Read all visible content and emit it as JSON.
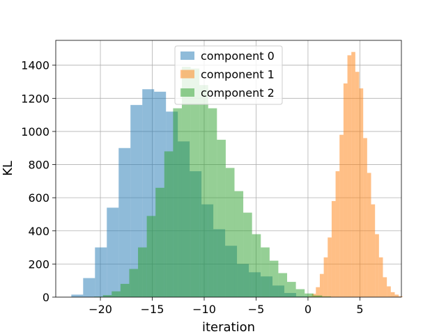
{
  "chart_data": {
    "type": "histogram",
    "xlabel": "iteration",
    "ylabel": "KL",
    "xlim": [
      -24.3,
      9.0
    ],
    "ylim": [
      0,
      1550
    ],
    "xticks": [
      -20,
      -15,
      -10,
      -5,
      0,
      5
    ],
    "xtick_labels": [
      "−20",
      "−15",
      "−10",
      "−5",
      "0",
      "5"
    ],
    "yticks": [
      0,
      200,
      400,
      600,
      800,
      1000,
      1200,
      1400
    ],
    "ytick_labels": [
      "0",
      "200",
      "400",
      "600",
      "800",
      "1000",
      "1200",
      "1400"
    ],
    "grid": true,
    "legend_position": "top-center",
    "series": [
      {
        "name": "component 0",
        "color": "#1f77b4",
        "alpha": 0.5,
        "bin_start": -22.8,
        "bin_width": 1.14,
        "counts": [
          15,
          115,
          300,
          540,
          900,
          1160,
          1255,
          1240,
          1120,
          940,
          760,
          560,
          410,
          310,
          200,
          150,
          125,
          70,
          25,
          5
        ]
      },
      {
        "name": "component 1",
        "color": "#ff7f0e",
        "alpha": 0.5,
        "bin_start": 0.0,
        "bin_width": 0.38,
        "counts": [
          5,
          20,
          60,
          140,
          240,
          360,
          580,
          760,
          980,
          1290,
          1460,
          1480,
          1360,
          1260,
          960,
          750,
          560,
          380,
          240,
          120,
          65,
          30,
          15,
          5
        ]
      },
      {
        "name": "component 2",
        "color": "#2ca02c",
        "alpha": 0.5,
        "bin_start": -20.6,
        "bin_width": 0.845,
        "counts": [
          3,
          12,
          35,
          80,
          170,
          300,
          490,
          660,
          880,
          1140,
          1390,
          1380,
          1280,
          1140,
          950,
          780,
          640,
          510,
          380,
          300,
          220,
          145,
          92,
          48,
          22,
          10,
          4
        ]
      }
    ]
  }
}
